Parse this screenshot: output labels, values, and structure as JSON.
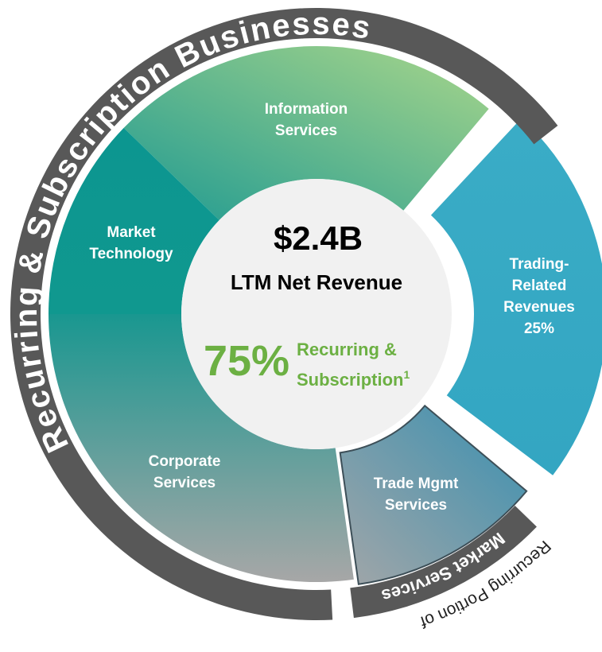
{
  "ring_label": "Recurring & Subscription Businesses",
  "center": {
    "total": "$2.4B",
    "caption": "LTM Net Revenue",
    "share": "75%",
    "share_caption_1": "Recurring &",
    "share_caption_2": "Subscription",
    "footnote": "1"
  },
  "segments": [
    {
      "label_lines": [
        "Information",
        "Services"
      ]
    },
    {
      "label_lines": [
        "Market",
        "Technology"
      ]
    },
    {
      "label_lines": [
        "Corporate",
        "Services"
      ]
    },
    {
      "label_lines": [
        "Trade Mgmt",
        "Services"
      ]
    },
    {
      "label_lines": [
        "Trading-",
        "Related",
        "Revenues",
        "25%"
      ]
    }
  ],
  "market_services": "Market Services",
  "recurring_note": "Recurring Portion of"
}
